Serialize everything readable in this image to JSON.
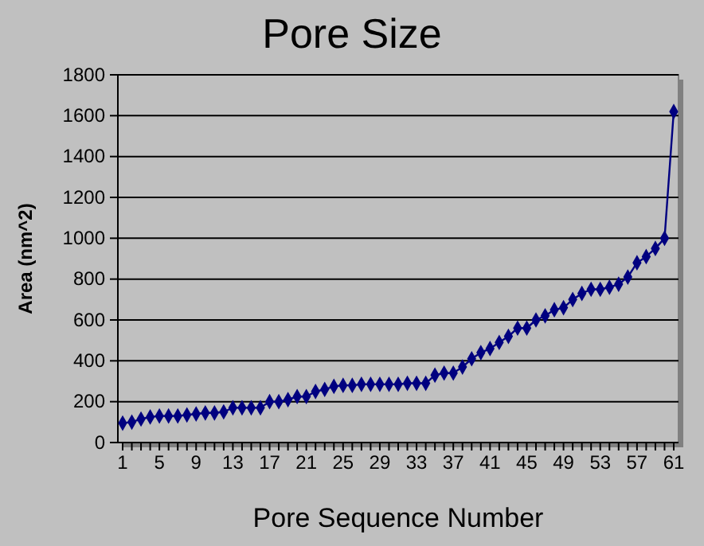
{
  "chart_data": {
    "type": "line",
    "title": "Pore Size",
    "xlabel": "Pore Sequence Number",
    "ylabel": "Area (nm^2)",
    "categories": [
      "1",
      null,
      null,
      null,
      "5",
      null,
      null,
      null,
      "9",
      null,
      null,
      null,
      "13",
      null,
      null,
      null,
      "17",
      null,
      null,
      null,
      "21",
      null,
      null,
      null,
      "25",
      null,
      null,
      null,
      "29",
      null,
      null,
      null,
      "33",
      null,
      null,
      null,
      "37",
      null,
      null,
      null,
      "41",
      null,
      null,
      null,
      "45",
      null,
      null,
      null,
      "49",
      null,
      null,
      null,
      "53",
      null,
      null,
      null,
      "57",
      null,
      null,
      null,
      "61"
    ],
    "series": [
      {
        "color": "#000080",
        "values": [
          95,
          100,
          115,
          125,
          130,
          130,
          130,
          135,
          140,
          145,
          145,
          150,
          170,
          170,
          170,
          170,
          200,
          200,
          210,
          225,
          225,
          250,
          260,
          275,
          280,
          280,
          285,
          285,
          285,
          285,
          285,
          290,
          290,
          290,
          330,
          340,
          340,
          370,
          410,
          440,
          460,
          490,
          520,
          560,
          560,
          600,
          620,
          650,
          660,
          700,
          730,
          750,
          750,
          760,
          775,
          810,
          880,
          910,
          950,
          1000,
          1620
        ]
      }
    ],
    "ylim": [
      0,
      1800
    ],
    "yticks": [
      0,
      200,
      400,
      600,
      800,
      1000,
      1200,
      1400,
      1600,
      1800
    ],
    "grid": "y",
    "marker": "diamond",
    "line_style": "solid"
  }
}
